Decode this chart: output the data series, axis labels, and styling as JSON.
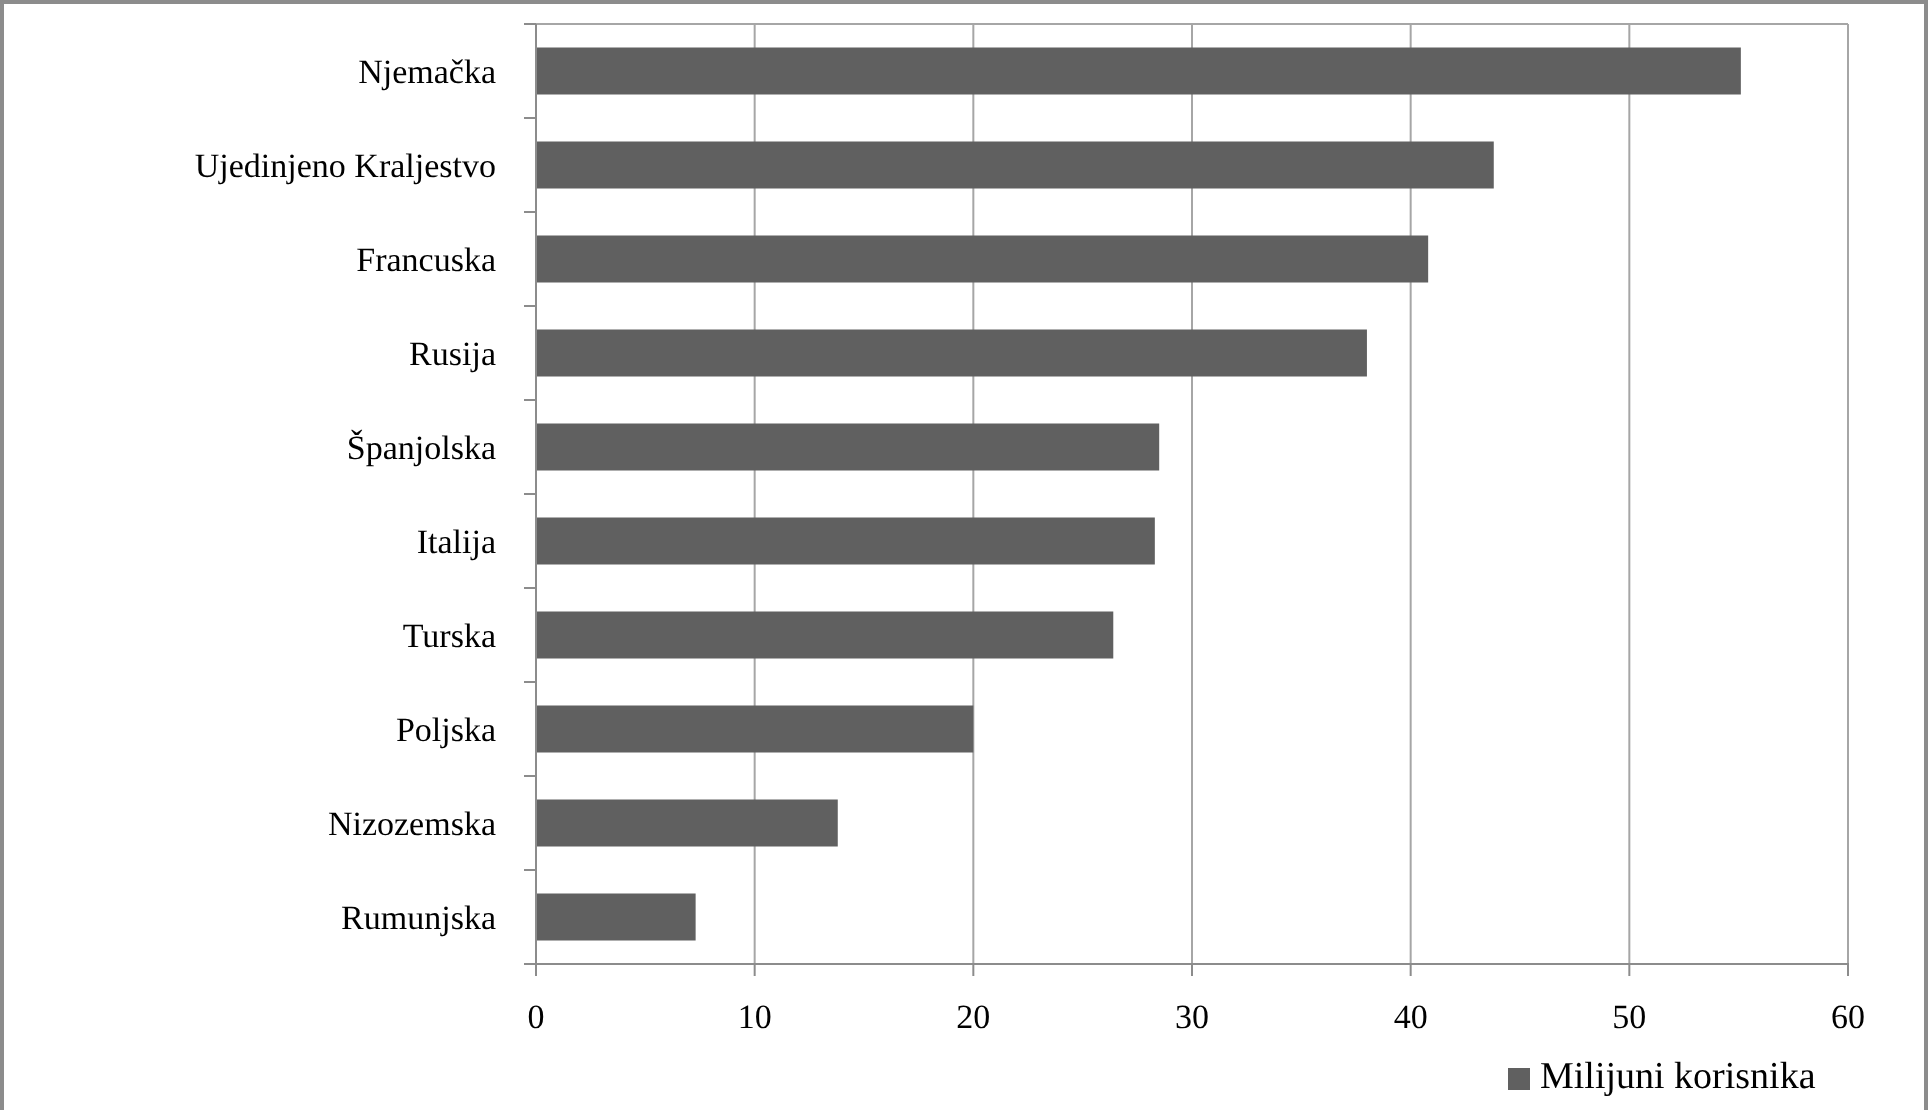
{
  "chart_data": {
    "type": "bar",
    "orientation": "horizontal",
    "categories": [
      "Njemačka",
      "Ujedinjeno Kraljestvo",
      "Francuska",
      "Rusija",
      "Španjolska",
      "Italija",
      "Turska",
      "Poljska",
      "Nizozemska",
      "Rumunjska"
    ],
    "series": [
      {
        "name": "Milijuni korisnika",
        "color": "#606060",
        "values": [
          55.1,
          43.8,
          40.8,
          38.0,
          28.5,
          28.3,
          26.4,
          20.0,
          13.8,
          7.3
        ]
      }
    ],
    "xlim": [
      0,
      60
    ],
    "xticks": [
      0,
      10,
      20,
      30,
      40,
      50,
      60
    ],
    "grid": "x",
    "legend": "bottom right"
  }
}
